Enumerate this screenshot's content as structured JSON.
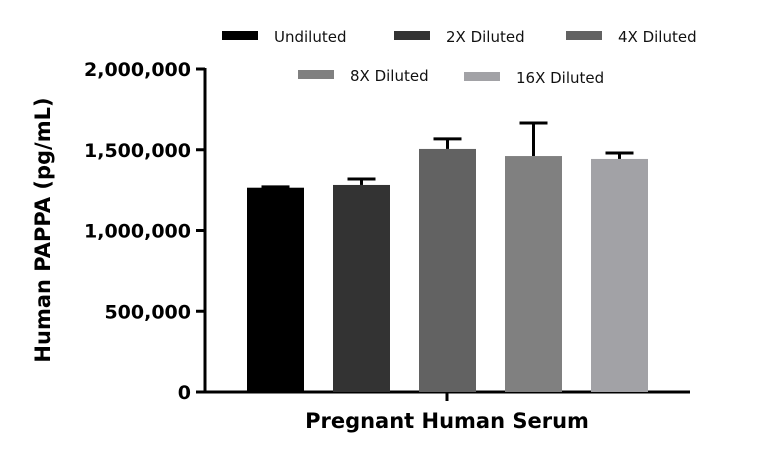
{
  "chart_data": {
    "type": "bar",
    "title": "",
    "xlabel": "Pregnant Human Serum",
    "ylabel": "Human PAPPA (pg/mL)",
    "ylim": [
      0,
      2000000
    ],
    "yticks": [
      0,
      500000,
      1000000,
      1500000,
      2000000
    ],
    "ytick_labels": [
      "0",
      "500,000",
      "1,000,000",
      "1,500,000",
      "2,000,000"
    ],
    "grid": false,
    "legend_placement": "top",
    "categories": [
      "Pregnant Human Serum"
    ],
    "series": [
      {
        "name": "Undiluted",
        "value": 1265000,
        "error": 5000,
        "color": "#000000"
      },
      {
        "name": "2X Diluted",
        "value": 1282000,
        "error": 37000,
        "color": "#333333"
      },
      {
        "name": "4X Diluted",
        "value": 1505000,
        "error": 62000,
        "color": "#626262"
      },
      {
        "name": "8X Diluted",
        "value": 1461000,
        "error": 205000,
        "color": "#808080"
      },
      {
        "name": "16X Diluted",
        "value": 1443000,
        "error": 37000,
        "color": "#a2a2a6"
      }
    ]
  }
}
